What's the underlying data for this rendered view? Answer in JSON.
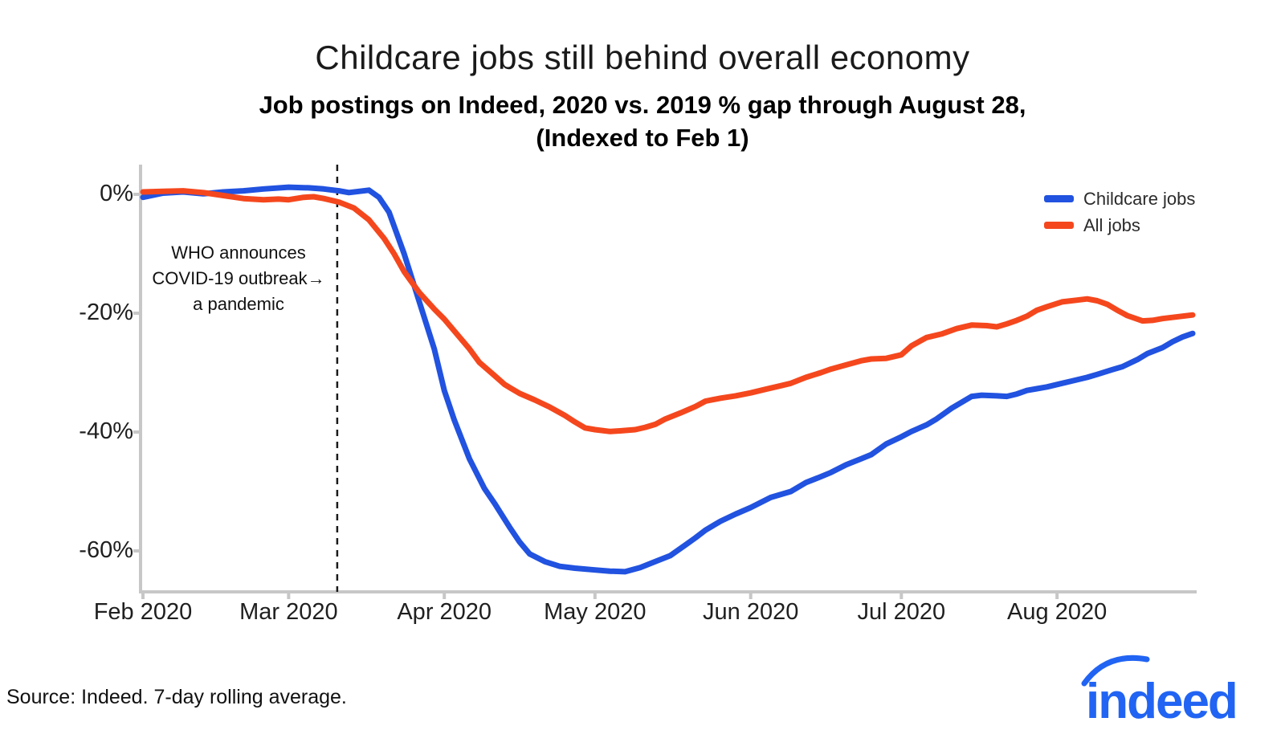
{
  "page": {
    "source_note": "Source: Indeed. 7-day rolling average.",
    "logo_text": "indeed",
    "brand_color": "#2164F3"
  },
  "chart_data": {
    "type": "line",
    "title": "Childcare jobs still behind overall economy",
    "subtitle_line1": "Job postings on Indeed, 2020 vs. 2019 % gap through August 28,",
    "subtitle_line2": "(Indexed to Feb 1)",
    "x_axis": {
      "note": "day 0 = Feb 1 2020, day 209 = Aug 28 2020",
      "range_days": [
        0,
        209
      ],
      "ticks": [
        {
          "label": "Feb 2020",
          "day": 0
        },
        {
          "label": "Mar 2020",
          "day": 29
        },
        {
          "label": "Apr 2020",
          "day": 60
        },
        {
          "label": "May 2020",
          "day": 90
        },
        {
          "label": "Jun 2020",
          "day": 121
        },
        {
          "label": "Jul 2020",
          "day": 151
        },
        {
          "label": "Aug 2020",
          "day": 182
        }
      ]
    },
    "y_axis": {
      "unit": "%",
      "range": [
        5,
        -67
      ],
      "grid": false,
      "ticks": [
        {
          "label": "0%",
          "value": 0
        },
        {
          "label": "-20%",
          "value": -20
        },
        {
          "label": "-40%",
          "value": -40
        },
        {
          "label": "-60%",
          "value": -60
        }
      ]
    },
    "legend_position": "top-right",
    "series": [
      {
        "name": "Childcare jobs",
        "color": "#2152E0",
        "points": [
          [
            0,
            -0.5
          ],
          [
            4,
            0.2
          ],
          [
            8,
            0.4
          ],
          [
            12,
            0.1
          ],
          [
            16,
            0.4
          ],
          [
            20,
            0.6
          ],
          [
            24,
            0.9
          ],
          [
            29,
            1.2
          ],
          [
            33,
            1.1
          ],
          [
            36,
            0.9
          ],
          [
            39,
            0.6
          ],
          [
            41,
            0.3
          ],
          [
            43,
            0.5
          ],
          [
            45,
            0.7
          ],
          [
            47,
            -0.5
          ],
          [
            49,
            -3
          ],
          [
            52,
            -10
          ],
          [
            55,
            -18
          ],
          [
            58,
            -26
          ],
          [
            60,
            -33
          ],
          [
            62,
            -38
          ],
          [
            65,
            -44.5
          ],
          [
            68,
            -49.5
          ],
          [
            70,
            -52
          ],
          [
            73,
            -56
          ],
          [
            75,
            -58.5
          ],
          [
            77,
            -60.5
          ],
          [
            80,
            -61.8
          ],
          [
            83,
            -62.6
          ],
          [
            86,
            -62.9
          ],
          [
            90,
            -63.2
          ],
          [
            93,
            -63.4
          ],
          [
            96,
            -63.5
          ],
          [
            99,
            -62.8
          ],
          [
            102,
            -61.8
          ],
          [
            105,
            -60.8
          ],
          [
            108,
            -59
          ],
          [
            110,
            -57.8
          ],
          [
            112,
            -56.5
          ],
          [
            115,
            -55
          ],
          [
            118,
            -53.8
          ],
          [
            121,
            -52.7
          ],
          [
            125,
            -51
          ],
          [
            129,
            -50
          ],
          [
            132,
            -48.5
          ],
          [
            135,
            -47.5
          ],
          [
            137,
            -46.8
          ],
          [
            140,
            -45.5
          ],
          [
            143,
            -44.5
          ],
          [
            145,
            -43.8
          ],
          [
            148,
            -42
          ],
          [
            151,
            -40.8
          ],
          [
            153,
            -39.9
          ],
          [
            156,
            -38.8
          ],
          [
            158,
            -37.8
          ],
          [
            161,
            -36
          ],
          [
            163,
            -35
          ],
          [
            165,
            -34
          ],
          [
            167,
            -33.8
          ],
          [
            170,
            -33.9
          ],
          [
            172,
            -34
          ],
          [
            174,
            -33.6
          ],
          [
            176,
            -33
          ],
          [
            178,
            -32.7
          ],
          [
            180,
            -32.4
          ],
          [
            183,
            -31.8
          ],
          [
            185,
            -31.4
          ],
          [
            188,
            -30.8
          ],
          [
            190,
            -30.3
          ],
          [
            193,
            -29.5
          ],
          [
            195,
            -29
          ],
          [
            198,
            -27.8
          ],
          [
            200,
            -26.8
          ],
          [
            203,
            -25.8
          ],
          [
            205,
            -24.8
          ],
          [
            207,
            -24
          ],
          [
            209,
            -23.4
          ]
        ]
      },
      {
        "name": "All jobs",
        "color": "#F5471D",
        "points": [
          [
            0,
            0.4
          ],
          [
            4,
            0.5
          ],
          [
            8,
            0.6
          ],
          [
            12,
            0.3
          ],
          [
            16,
            -0.2
          ],
          [
            20,
            -0.7
          ],
          [
            24,
            -0.9
          ],
          [
            27,
            -0.8
          ],
          [
            29,
            -0.9
          ],
          [
            32,
            -0.5
          ],
          [
            34,
            -0.4
          ],
          [
            36,
            -0.7
          ],
          [
            39,
            -1.3
          ],
          [
            42,
            -2.3
          ],
          [
            45,
            -4.3
          ],
          [
            48,
            -7.4
          ],
          [
            50,
            -10
          ],
          [
            52,
            -13
          ],
          [
            55,
            -16.5
          ],
          [
            58,
            -19.3
          ],
          [
            60,
            -21
          ],
          [
            63,
            -24
          ],
          [
            65,
            -26
          ],
          [
            67,
            -28.3
          ],
          [
            70,
            -30.5
          ],
          [
            72,
            -32
          ],
          [
            75,
            -33.5
          ],
          [
            78,
            -34.6
          ],
          [
            81,
            -35.8
          ],
          [
            84,
            -37.2
          ],
          [
            86,
            -38.3
          ],
          [
            88,
            -39.3
          ],
          [
            90,
            -39.6
          ],
          [
            93,
            -39.9
          ],
          [
            95,
            -39.8
          ],
          [
            98,
            -39.6
          ],
          [
            100,
            -39.2
          ],
          [
            102,
            -38.7
          ],
          [
            104,
            -37.8
          ],
          [
            107,
            -36.8
          ],
          [
            110,
            -35.7
          ],
          [
            112,
            -34.8
          ],
          [
            115,
            -34.3
          ],
          [
            118,
            -33.9
          ],
          [
            121,
            -33.4
          ],
          [
            124,
            -32.8
          ],
          [
            127,
            -32.2
          ],
          [
            129,
            -31.8
          ],
          [
            132,
            -30.8
          ],
          [
            135,
            -30
          ],
          [
            137,
            -29.4
          ],
          [
            140,
            -28.7
          ],
          [
            143,
            -28
          ],
          [
            145,
            -27.7
          ],
          [
            148,
            -27.6
          ],
          [
            151,
            -27
          ],
          [
            153,
            -25.5
          ],
          [
            156,
            -24.1
          ],
          [
            159,
            -23.5
          ],
          [
            162,
            -22.6
          ],
          [
            165,
            -22
          ],
          [
            168,
            -22.1
          ],
          [
            170,
            -22.3
          ],
          [
            172,
            -21.8
          ],
          [
            174,
            -21.2
          ],
          [
            176,
            -20.5
          ],
          [
            178,
            -19.5
          ],
          [
            180,
            -18.9
          ],
          [
            183,
            -18.1
          ],
          [
            186,
            -17.8
          ],
          [
            188,
            -17.6
          ],
          [
            190,
            -17.9
          ],
          [
            192,
            -18.5
          ],
          [
            194,
            -19.5
          ],
          [
            196,
            -20.4
          ],
          [
            199,
            -21.3
          ],
          [
            201,
            -21.2
          ],
          [
            203,
            -20.9
          ],
          [
            205,
            -20.7
          ],
          [
            207,
            -20.5
          ],
          [
            209,
            -20.3
          ]
        ]
      }
    ],
    "annotation": {
      "text_line1": "WHO announces",
      "text_line2": "COVID-19 outbreak→",
      "text_line3": "a pandemic",
      "event_day": 39,
      "marker": "vertical dashed line"
    }
  }
}
